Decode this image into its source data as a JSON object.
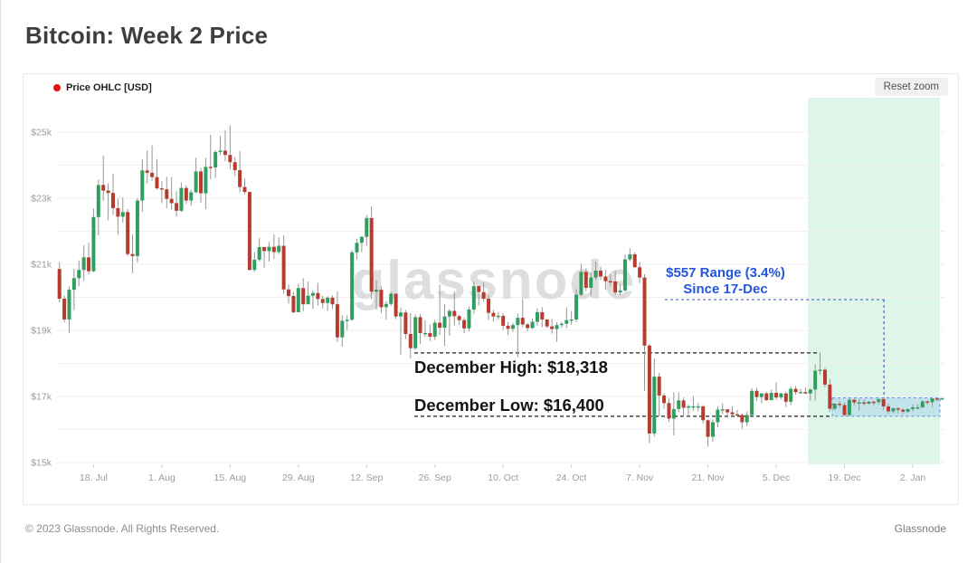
{
  "page": {
    "title": "Bitcoin: Week 2 Price",
    "footer_left": "© 2023 Glassnode. All Rights Reserved.",
    "footer_right": "Glassnode"
  },
  "toolbar": {
    "reset_zoom_label": "Reset zoom"
  },
  "legend": {
    "series_label": "Price OHLC [USD]"
  },
  "watermark": "glassnode",
  "colors": {
    "up": "#2f9e5f",
    "down": "#b93a2e",
    "wick": "#969696",
    "legend_dot": "#e31212",
    "annotation_blue": "#2456dd",
    "highlight_green": "#ddf6e9",
    "band_fill": "#8fc1ef",
    "band_border": "#5f92dd",
    "grid": "#efefef",
    "axis_text": "#9c9c9c",
    "dashed_black": "#222222",
    "watermark_gray": "#d3d3d3"
  },
  "annotations": {
    "range_label_line1": "$557 Range (3.4%)",
    "range_label_line2": "Since 17-Dec",
    "december_high_label": "December High: $18,318",
    "december_high_value_k": 18.318,
    "december_low_label": "December Low: $16,400",
    "december_low_value_k": 16.4,
    "range_band": {
      "start_index": 159,
      "top_k": 16.957,
      "bottom_k": 16.4
    },
    "highlight_zone_start_index": 154,
    "callout": {
      "price_k": 19.93,
      "x_index": 169.6
    }
  },
  "chart_data": {
    "type": "candlestick",
    "title": "Bitcoin: Week 2 Price",
    "series_name": "Price OHLC [USD]",
    "unit": "USD (thousands)",
    "start_date": "2022-07-11",
    "interval": "daily",
    "grid": "horizontal-only",
    "y_axis": {
      "min": 15,
      "max": 25,
      "grid_step_k": 1,
      "tick_values": [
        15,
        17,
        19,
        21,
        23,
        25
      ],
      "tick_labels": [
        "$15k",
        "$17k",
        "$19k",
        "$21k",
        "$23k",
        "$25k"
      ]
    },
    "x_axis": {
      "ticks": [
        {
          "label": "18. Jul",
          "index": 7
        },
        {
          "label": "1. Aug",
          "index": 21
        },
        {
          "label": "15. Aug",
          "index": 35
        },
        {
          "label": "29. Aug",
          "index": 49
        },
        {
          "label": "12. Sep",
          "index": 63
        },
        {
          "label": "26. Sep",
          "index": 77
        },
        {
          "label": "10. Oct",
          "index": 91
        },
        {
          "label": "24. Oct",
          "index": 105
        },
        {
          "label": "7. Nov",
          "index": 119
        },
        {
          "label": "21. Nov",
          "index": 133
        },
        {
          "label": "5. Dec",
          "index": 147
        },
        {
          "label": "19. Dec",
          "index": 161
        },
        {
          "label": "2. Jan",
          "index": 175
        }
      ]
    },
    "columns": [
      "open",
      "high",
      "low",
      "close"
    ],
    "candles": [
      [
        20.86,
        21.06,
        19.85,
        19.96
      ],
      [
        19.96,
        20.05,
        19.24,
        19.33
      ],
      [
        19.33,
        20.33,
        18.91,
        20.23
      ],
      [
        20.23,
        20.86,
        19.61,
        20.58
      ],
      [
        20.58,
        21.12,
        20.33,
        20.83
      ],
      [
        20.83,
        21.58,
        20.5,
        21.21
      ],
      [
        21.21,
        21.65,
        20.7,
        20.79
      ],
      [
        20.79,
        22.69,
        20.76,
        22.43
      ],
      [
        22.43,
        23.56,
        21.87,
        23.4
      ],
      [
        23.4,
        24.28,
        22.92,
        23.23
      ],
      [
        23.23,
        23.45,
        22.33,
        23.16
      ],
      [
        23.16,
        23.74,
        22.5,
        22.7
      ],
      [
        22.7,
        22.99,
        21.9,
        22.44
      ],
      [
        22.44,
        23.02,
        22.26,
        22.58
      ],
      [
        22.58,
        22.67,
        21.25,
        21.31
      ],
      [
        21.31,
        21.9,
        20.73,
        21.25
      ],
      [
        21.25,
        23.01,
        21.06,
        22.93
      ],
      [
        22.93,
        24.18,
        22.59,
        23.84
      ],
      [
        23.84,
        24.45,
        23.45,
        23.77
      ],
      [
        23.77,
        24.6,
        23.53,
        23.64
      ],
      [
        23.64,
        24.19,
        23.26,
        23.3
      ],
      [
        23.3,
        23.51,
        22.85,
        23.27
      ],
      [
        23.27,
        23.65,
        22.7,
        22.98
      ],
      [
        22.98,
        23.64,
        22.66,
        22.85
      ],
      [
        22.85,
        23.21,
        22.44,
        22.62
      ],
      [
        22.62,
        23.47,
        22.58,
        23.31
      ],
      [
        23.31,
        23.39,
        22.83,
        22.93
      ],
      [
        22.93,
        23.26,
        22.77,
        23.18
      ],
      [
        23.18,
        24.23,
        23.16,
        23.81
      ],
      [
        23.81,
        23.92,
        22.86,
        23.15
      ],
      [
        23.15,
        24.22,
        22.67,
        23.95
      ],
      [
        23.95,
        24.92,
        23.57,
        23.93
      ],
      [
        23.93,
        24.45,
        23.61,
        24.4
      ],
      [
        24.4,
        24.89,
        24.3,
        24.44
      ],
      [
        24.44,
        25.05,
        24.12,
        24.31
      ],
      [
        24.31,
        25.21,
        23.88,
        24.09
      ],
      [
        24.09,
        24.25,
        23.67,
        23.85
      ],
      [
        23.85,
        24.43,
        23.18,
        23.34
      ],
      [
        23.34,
        23.6,
        23.12,
        23.19
      ],
      [
        23.19,
        23.21,
        20.81,
        20.83
      ],
      [
        20.83,
        21.37,
        20.77,
        21.14
      ],
      [
        21.14,
        21.8,
        21.08,
        21.52
      ],
      [
        21.52,
        21.53,
        20.9,
        21.4
      ],
      [
        21.4,
        21.68,
        21.08,
        21.53
      ],
      [
        21.53,
        21.9,
        21.16,
        21.37
      ],
      [
        21.37,
        21.82,
        21.31,
        21.56
      ],
      [
        21.56,
        21.88,
        20.11,
        20.24
      ],
      [
        20.24,
        20.39,
        19.81,
        20.04
      ],
      [
        20.04,
        20.17,
        19.52,
        19.55
      ],
      [
        19.55,
        20.41,
        19.55,
        20.28
      ],
      [
        20.28,
        20.58,
        19.58,
        19.79
      ],
      [
        19.79,
        20.48,
        19.79,
        20.05
      ],
      [
        20.05,
        20.21,
        19.65,
        20.13
      ],
      [
        20.13,
        20.44,
        19.75,
        19.95
      ],
      [
        19.95,
        20.05,
        19.66,
        19.83
      ],
      [
        19.83,
        20.03,
        19.59,
        19.99
      ],
      [
        19.99,
        20.06,
        19.65,
        19.79
      ],
      [
        19.79,
        20.18,
        18.65,
        18.79
      ],
      [
        18.79,
        19.46,
        18.51,
        19.29
      ],
      [
        19.29,
        19.45,
        19.0,
        19.32
      ],
      [
        19.32,
        21.43,
        19.29,
        21.36
      ],
      [
        21.36,
        21.77,
        21.15,
        21.65
      ],
      [
        21.65,
        21.85,
        21.36,
        21.83
      ],
      [
        21.83,
        22.49,
        21.56,
        22.4
      ],
      [
        22.4,
        22.75,
        19.94,
        20.17
      ],
      [
        20.17,
        20.51,
        19.63,
        20.23
      ],
      [
        20.23,
        20.33,
        19.52,
        19.7
      ],
      [
        19.7,
        19.89,
        19.33,
        19.8
      ],
      [
        19.8,
        20.17,
        19.74,
        20.11
      ],
      [
        20.11,
        20.12,
        19.34,
        19.42
      ],
      [
        19.42,
        19.69,
        18.27,
        19.54
      ],
      [
        19.54,
        19.62,
        18.74,
        18.89
      ],
      [
        18.89,
        19.52,
        18.16,
        18.46
      ],
      [
        18.46,
        19.48,
        18.41,
        19.4
      ],
      [
        19.4,
        19.5,
        18.59,
        18.92
      ],
      [
        18.92,
        19.31,
        18.8,
        18.92
      ],
      [
        18.92,
        19.18,
        18.68,
        18.81
      ],
      [
        18.81,
        19.32,
        18.71,
        19.23
      ],
      [
        19.23,
        20.38,
        18.86,
        19.08
      ],
      [
        19.08,
        19.79,
        18.53,
        19.42
      ],
      [
        19.42,
        19.64,
        18.84,
        19.59
      ],
      [
        19.59,
        20.18,
        19.15,
        19.43
      ],
      [
        19.43,
        19.48,
        19.16,
        19.31
      ],
      [
        19.31,
        19.39,
        18.92,
        19.06
      ],
      [
        19.06,
        19.72,
        18.96,
        19.63
      ],
      [
        19.63,
        20.48,
        19.51,
        20.34
      ],
      [
        20.34,
        20.36,
        19.74,
        20.16
      ],
      [
        20.16,
        20.45,
        19.87,
        19.96
      ],
      [
        19.96,
        20.06,
        19.32,
        19.53
      ],
      [
        19.53,
        19.62,
        19.27,
        19.42
      ],
      [
        19.42,
        19.56,
        19.32,
        19.44
      ],
      [
        19.44,
        19.52,
        19.02,
        19.14
      ],
      [
        19.14,
        19.26,
        18.86,
        19.05
      ],
      [
        19.05,
        19.23,
        18.95,
        19.16
      ],
      [
        19.16,
        19.51,
        18.19,
        19.38
      ],
      [
        19.38,
        19.95,
        19.1,
        19.18
      ],
      [
        19.18,
        19.22,
        18.97,
        19.07
      ],
      [
        19.07,
        19.36,
        19.04,
        19.26
      ],
      [
        19.26,
        19.67,
        19.14,
        19.55
      ],
      [
        19.55,
        19.7,
        19.1,
        19.33
      ],
      [
        19.33,
        19.35,
        19.07,
        19.12
      ],
      [
        19.12,
        19.35,
        18.9,
        19.04
      ],
      [
        19.04,
        19.25,
        18.65,
        19.16
      ],
      [
        19.16,
        19.26,
        19.08,
        19.2
      ],
      [
        19.2,
        19.69,
        19.06,
        19.31
      ],
      [
        19.31,
        19.59,
        19.17,
        19.33
      ],
      [
        19.33,
        20.25,
        19.25,
        20.08
      ],
      [
        20.08,
        21.02,
        20.05,
        20.77
      ],
      [
        20.77,
        20.87,
        20.19,
        20.29
      ],
      [
        20.29,
        20.76,
        20.03,
        20.6
      ],
      [
        20.6,
        21.08,
        20.53,
        20.81
      ],
      [
        20.81,
        20.93,
        20.52,
        20.63
      ],
      [
        20.63,
        20.83,
        20.23,
        20.49
      ],
      [
        20.49,
        20.7,
        20.33,
        20.48
      ],
      [
        20.48,
        20.8,
        20.08,
        20.15
      ],
      [
        20.15,
        20.4,
        20.06,
        20.21
      ],
      [
        20.21,
        21.3,
        20.19,
        21.15
      ],
      [
        21.15,
        21.48,
        21.09,
        21.3
      ],
      [
        21.3,
        21.36,
        20.9,
        20.91
      ],
      [
        20.91,
        21.07,
        20.43,
        20.6
      ],
      [
        20.6,
        20.7,
        17.17,
        18.54
      ],
      [
        18.54,
        18.59,
        15.59,
        15.88
      ],
      [
        15.88,
        18.15,
        15.79,
        17.6
      ],
      [
        17.6,
        17.71,
        16.4,
        17.03
      ],
      [
        17.03,
        17.1,
        16.63,
        16.8
      ],
      [
        16.8,
        16.96,
        16.23,
        16.33
      ],
      [
        16.33,
        17.13,
        15.82,
        16.62
      ],
      [
        16.62,
        17.12,
        16.53,
        16.88
      ],
      [
        16.88,
        16.97,
        16.38,
        16.66
      ],
      [
        16.66,
        16.75,
        16.37,
        16.7
      ],
      [
        16.7,
        17.01,
        16.56,
        16.7
      ],
      [
        16.7,
        16.8,
        16.55,
        16.7
      ],
      [
        16.7,
        16.74,
        16.18,
        16.28
      ],
      [
        16.28,
        16.31,
        15.48,
        15.78
      ],
      [
        15.78,
        16.31,
        15.62,
        16.22
      ],
      [
        16.22,
        16.71,
        16.06,
        16.6
      ],
      [
        16.6,
        16.79,
        16.46,
        16.61
      ],
      [
        16.61,
        16.61,
        16.35,
        16.52
      ],
      [
        16.52,
        16.7,
        16.41,
        16.46
      ],
      [
        16.46,
        16.59,
        16.39,
        16.44
      ],
      [
        16.44,
        16.48,
        16.02,
        16.22
      ],
      [
        16.22,
        16.55,
        16.1,
        16.44
      ],
      [
        16.44,
        17.25,
        16.43,
        17.17
      ],
      [
        17.17,
        17.26,
        16.86,
        16.98
      ],
      [
        16.98,
        17.11,
        16.79,
        17.09
      ],
      [
        17.09,
        17.14,
        16.86,
        16.89
      ],
      [
        16.89,
        17.2,
        16.88,
        17.11
      ],
      [
        17.11,
        17.42,
        16.89,
        16.97
      ],
      [
        16.97,
        17.11,
        16.91,
        17.09
      ],
      [
        17.09,
        17.14,
        16.68,
        16.84
      ],
      [
        16.84,
        17.3,
        16.74,
        17.23
      ],
      [
        17.23,
        17.32,
        17.05,
        17.13
      ],
      [
        17.13,
        17.23,
        17.1,
        17.13
      ],
      [
        17.13,
        17.27,
        17.07,
        17.09
      ],
      [
        17.09,
        17.24,
        16.87,
        17.21
      ],
      [
        17.21,
        17.97,
        16.88,
        17.78
      ],
      [
        17.78,
        18.318,
        17.66,
        17.81
      ],
      [
        17.81,
        17.86,
        17.28,
        17.36
      ],
      [
        17.36,
        17.52,
        16.53,
        16.63
      ],
      [
        16.63,
        16.8,
        16.58,
        16.78
      ],
      [
        16.78,
        16.87,
        16.66,
        16.74
      ],
      [
        16.74,
        16.82,
        16.4,
        16.44
      ],
      [
        16.44,
        16.94,
        16.4,
        16.9
      ],
      [
        16.9,
        16.93,
        16.73,
        16.82
      ],
      [
        16.82,
        16.92,
        16.57,
        16.82
      ],
      [
        16.82,
        16.91,
        16.71,
        16.78
      ],
      [
        16.78,
        16.86,
        16.76,
        16.84
      ],
      [
        16.84,
        16.87,
        16.71,
        16.83
      ],
      [
        16.83,
        16.94,
        16.76,
        16.92
      ],
      [
        16.92,
        16.95,
        16.6,
        16.7
      ],
      [
        16.7,
        16.77,
        16.47,
        16.55
      ],
      [
        16.55,
        16.67,
        16.49,
        16.64
      ],
      [
        16.64,
        16.67,
        16.49,
        16.6
      ],
      [
        16.6,
        16.63,
        16.47,
        16.54
      ],
      [
        16.54,
        16.63,
        16.5,
        16.62
      ],
      [
        16.62,
        16.76,
        16.55,
        16.67
      ],
      [
        16.67,
        16.77,
        16.61,
        16.67
      ],
      [
        16.67,
        16.88,
        16.65,
        16.85
      ],
      [
        16.85,
        16.88,
        16.75,
        16.83
      ],
      [
        16.83,
        16.95,
        16.68,
        16.94
      ],
      [
        16.94,
        16.955,
        16.86,
        16.93
      ],
      [
        16.93,
        16.957,
        16.88,
        16.95
      ]
    ]
  }
}
